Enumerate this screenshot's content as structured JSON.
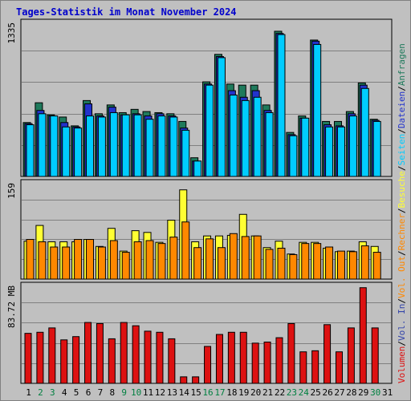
{
  "title": "Tages-Statistik im Monat November 2024",
  "colors": {
    "anfragen": "#1f7a5c",
    "dateien": "#2233cc",
    "seiten": "#00ccff",
    "besuche": "#ffff33",
    "rechner": "#ff8800",
    "vol_in": "#3344aa",
    "vol_out": "#ff8800",
    "volumen": "#dd1111",
    "weekend_label": "#008040",
    "weekday_label": "#000000",
    "plot_bg": "#c0c0c0",
    "grid": "#808080",
    "legend_sep": "#000000"
  },
  "chart_data": [
    {
      "type": "bar",
      "panel": "hits",
      "y_tick_label": "1335",
      "ylim": [
        0,
        1400
      ],
      "categories": [
        "1",
        "2",
        "3",
        "4",
        "5",
        "6",
        "7",
        "8",
        "9",
        "10",
        "11",
        "12",
        "13",
        "14",
        "15",
        "16",
        "17",
        "18",
        "19",
        "20",
        "21",
        "22",
        "23",
        "24",
        "25",
        "26",
        "27",
        "28",
        "29",
        "30",
        "31"
      ],
      "series": [
        {
          "name": "Anfragen",
          "color_key": "anfragen",
          "values": [
            490,
            670,
            560,
            540,
            460,
            690,
            570,
            650,
            580,
            610,
            590,
            580,
            570,
            500,
            170,
            860,
            1110,
            840,
            830,
            830,
            650,
            1320,
            400,
            550,
            1240,
            500,
            500,
            590,
            850,
            520,
            0
          ]
        },
        {
          "name": "Dateien",
          "color_key": "dateien",
          "values": [
            480,
            600,
            550,
            490,
            450,
            660,
            550,
            630,
            560,
            570,
            550,
            570,
            550,
            440,
            140,
            840,
            1090,
            780,
            720,
            780,
            600,
            1300,
            380,
            530,
            1230,
            470,
            460,
            570,
            830,
            510,
            0
          ]
        },
        {
          "name": "Seiten",
          "color_key": "seiten",
          "values": [
            470,
            570,
            550,
            450,
            440,
            550,
            540,
            580,
            560,
            560,
            520,
            550,
            540,
            420,
            140,
            830,
            1080,
            740,
            690,
            720,
            580,
            1290,
            370,
            530,
            1200,
            450,
            450,
            550,
            800,
            500,
            0
          ]
        }
      ]
    },
    {
      "type": "bar",
      "panel": "visits",
      "y_tick_label": "159",
      "ylim": [
        0,
        165
      ],
      "categories": [
        "1",
        "2",
        "3",
        "4",
        "5",
        "6",
        "7",
        "8",
        "9",
        "10",
        "11",
        "12",
        "13",
        "14",
        "15",
        "16",
        "17",
        "18",
        "19",
        "20",
        "21",
        "22",
        "23",
        "24",
        "25",
        "26",
        "27",
        "28",
        "29",
        "30",
        "31"
      ],
      "series": [
        {
          "name": "Besuche",
          "color_key": "besuche",
          "values": [
            65,
            92,
            64,
            64,
            64,
            68,
            56,
            87,
            48,
            83,
            80,
            63,
            101,
            153,
            64,
            74,
            74,
            75,
            111,
            74,
            54,
            65,
            43,
            63,
            63,
            53,
            47,
            48,
            64,
            56,
            0
          ]
        },
        {
          "name": "Rechner",
          "color_key": "rechner",
          "values": [
            68,
            64,
            55,
            55,
            68,
            68,
            55,
            66,
            46,
            64,
            66,
            61,
            72,
            98,
            54,
            69,
            54,
            78,
            73,
            74,
            51,
            53,
            42,
            61,
            61,
            55,
            48,
            47,
            57,
            46,
            0
          ]
        }
      ]
    },
    {
      "type": "bar",
      "panel": "volume",
      "y_tick_label": "83.72 MB",
      "ylim": [
        0,
        90
      ],
      "categories": [
        "1",
        "2",
        "3",
        "4",
        "5",
        "6",
        "7",
        "8",
        "9",
        "10",
        "11",
        "12",
        "13",
        "14",
        "15",
        "16",
        "17",
        "18",
        "19",
        "20",
        "21",
        "22",
        "23",
        "24",
        "25",
        "26",
        "27",
        "28",
        "29",
        "30",
        "31"
      ],
      "series": [
        {
          "name": "Volumen",
          "color_key": "volumen",
          "values": [
            46,
            47,
            51,
            40,
            43,
            56,
            55,
            41,
            56,
            53,
            48,
            47,
            41,
            6,
            6,
            34,
            45,
            47,
            47,
            37,
            38,
            42,
            55,
            29,
            30,
            54,
            29,
            51,
            88,
            51,
            0
          ]
        }
      ]
    }
  ],
  "x_labels": [
    {
      "text": "1",
      "weekend": false
    },
    {
      "text": "2",
      "weekend": true
    },
    {
      "text": "3",
      "weekend": true
    },
    {
      "text": "4",
      "weekend": false
    },
    {
      "text": "5",
      "weekend": false
    },
    {
      "text": "6",
      "weekend": false
    },
    {
      "text": "7",
      "weekend": false
    },
    {
      "text": "8",
      "weekend": false
    },
    {
      "text": "9",
      "weekend": true
    },
    {
      "text": "10",
      "weekend": true
    },
    {
      "text": "11",
      "weekend": false
    },
    {
      "text": "12",
      "weekend": false
    },
    {
      "text": "13",
      "weekend": false
    },
    {
      "text": "14",
      "weekend": false
    },
    {
      "text": "15",
      "weekend": false
    },
    {
      "text": "16",
      "weekend": true
    },
    {
      "text": "17",
      "weekend": true
    },
    {
      "text": "18",
      "weekend": false
    },
    {
      "text": "19",
      "weekend": false
    },
    {
      "text": "20",
      "weekend": false
    },
    {
      "text": "21",
      "weekend": false
    },
    {
      "text": "22",
      "weekend": false
    },
    {
      "text": "23",
      "weekend": true
    },
    {
      "text": "24",
      "weekend": true
    },
    {
      "text": "25",
      "weekend": false
    },
    {
      "text": "26",
      "weekend": false
    },
    {
      "text": "27",
      "weekend": false
    },
    {
      "text": "28",
      "weekend": false
    },
    {
      "text": "29",
      "weekend": false
    },
    {
      "text": "30",
      "weekend": true
    },
    {
      "text": "31",
      "weekend": false
    }
  ],
  "legend": {
    "top": [
      {
        "text": "Anfragen",
        "color_key": "anfragen"
      },
      {
        "text": "Dateien",
        "color_key": "dateien"
      },
      {
        "text": "Seiten",
        "color_key": "seiten"
      },
      {
        "text": "Besuche",
        "color_key": "besuche"
      },
      {
        "text": "Rechner",
        "color_key": "rechner"
      },
      {
        "text": "Vol. Out",
        "color_key": "vol_out"
      },
      {
        "text": "Vol. In",
        "color_key": "vol_in"
      },
      {
        "text": "Volumen",
        "color_key": "volumen"
      }
    ]
  }
}
